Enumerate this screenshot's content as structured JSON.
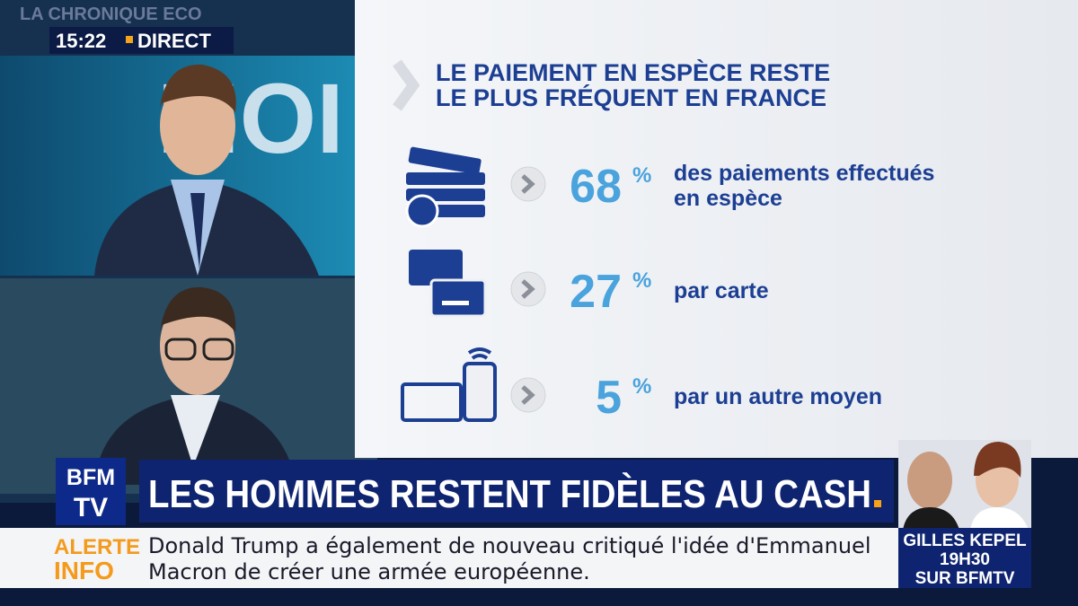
{
  "header": {
    "channel_show": "LA CHRONIQUE ECO",
    "time": "15:22",
    "live": "DIRECT",
    "studio_sign": "MOI"
  },
  "infographic": {
    "title": [
      "LE PAIEMENT EN ESPÈCE RESTE",
      "LE PLUS FRÉQUENT EN FRANCE"
    ],
    "items": [
      {
        "value": "68",
        "unit": "%",
        "label": [
          "des paiements effectués",
          "en espèce"
        ]
      },
      {
        "value": "27",
        "unit": "%",
        "label": [
          "par carte"
        ]
      },
      {
        "value": "5",
        "unit": "%",
        "label": [
          "par un autre moyen"
        ]
      }
    ]
  },
  "banner": {
    "logo": [
      "BFM",
      "TV"
    ],
    "headline": "LES HOMMES RESTENT FIDÈLES AU CASH"
  },
  "ticker": {
    "tag": [
      "ALERTE",
      "INFO"
    ],
    "text": [
      "Donald Trump a également de nouveau critiqué l'idée d'Emmanuel",
      "Macron de créer une armée européenne."
    ]
  },
  "promo": {
    "name": "GILLES KEPEL",
    "time": "19H30",
    "channel": "SUR BFMTV"
  }
}
